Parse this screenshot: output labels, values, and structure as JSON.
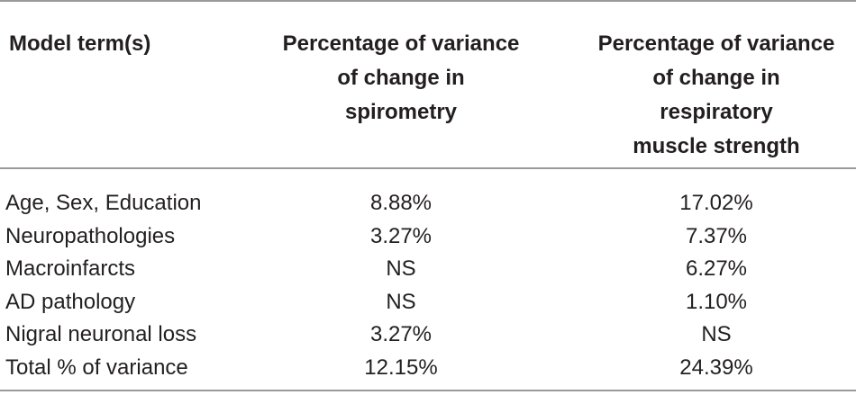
{
  "table": {
    "headers": {
      "col1": [
        "Model term(s)"
      ],
      "col2": [
        "Percentage of variance",
        "of change in",
        "spirometry"
      ],
      "col3": [
        "Percentage of variance",
        "of change in",
        "respiratory",
        "muscle strength"
      ]
    },
    "rows": [
      {
        "term": "Age, Sex, Education",
        "spirometry": "8.88%",
        "muscle": "17.02%"
      },
      {
        "term": "Neuropathologies",
        "spirometry": "3.27%",
        "muscle": "7.37%"
      },
      {
        "term": "Macroinfarcts",
        "spirometry": "NS",
        "muscle": "6.27%"
      },
      {
        "term": "AD pathology",
        "spirometry": "NS",
        "muscle": "1.10%"
      },
      {
        "term": "Nigral neuronal loss",
        "spirometry": "3.27%",
        "muscle": "NS"
      },
      {
        "term": "Total % of variance",
        "spirometry": "12.15%",
        "muscle": "24.39%"
      }
    ]
  }
}
